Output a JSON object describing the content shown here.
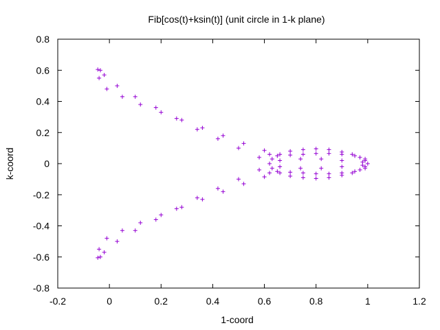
{
  "chart_data": {
    "type": "scatter",
    "title": "Fib[cos(t)+ksin(t)] (unit circle in 1-k plane)",
    "xlabel": "1-coord",
    "ylabel": "k-coord",
    "xlim": [
      -0.2,
      1.2
    ],
    "ylim": [
      -0.8,
      0.8
    ],
    "xticks": [
      "-0.2",
      "0",
      "0.2",
      "0.4",
      "0.6",
      "0.8",
      "1",
      "1.2"
    ],
    "yticks": [
      "-0.8",
      "-0.6",
      "-0.4",
      "-0.2",
      "0",
      "0.2",
      "0.4",
      "0.6",
      "0.8"
    ],
    "grid": false,
    "legend": "none",
    "marker": "+",
    "color": "#9400d3",
    "series": [
      {
        "points": [
          [
            1.0,
            0.0
          ],
          [
            0.99,
            0.02
          ],
          [
            0.97,
            0.04
          ],
          [
            0.94,
            0.06
          ],
          [
            0.9,
            0.075
          ],
          [
            0.85,
            0.09
          ],
          [
            0.8,
            0.095
          ],
          [
            0.75,
            0.09
          ],
          [
            0.7,
            0.08
          ],
          [
            0.66,
            0.06
          ],
          [
            0.63,
            0.03
          ],
          [
            0.62,
            0.0
          ],
          [
            0.63,
            -0.03
          ],
          [
            0.66,
            -0.06
          ],
          [
            0.7,
            -0.08
          ],
          [
            0.75,
            -0.09
          ],
          [
            0.8,
            -0.095
          ],
          [
            0.85,
            -0.09
          ],
          [
            0.9,
            -0.075
          ],
          [
            0.94,
            -0.06
          ],
          [
            0.97,
            -0.04
          ],
          [
            0.99,
            -0.02
          ],
          [
            0.99,
            0.03
          ],
          [
            0.95,
            0.05
          ],
          [
            0.9,
            0.06
          ],
          [
            0.85,
            0.065
          ],
          [
            0.8,
            0.065
          ],
          [
            0.75,
            0.06
          ],
          [
            0.7,
            0.055
          ],
          [
            0.65,
            0.05
          ],
          [
            0.99,
            -0.03
          ],
          [
            0.95,
            -0.05
          ],
          [
            0.9,
            -0.06
          ],
          [
            0.85,
            -0.065
          ],
          [
            0.8,
            -0.065
          ],
          [
            0.75,
            -0.06
          ],
          [
            0.7,
            -0.055
          ],
          [
            0.65,
            -0.05
          ],
          [
            0.98,
            0.01
          ],
          [
            0.9,
            0.02
          ],
          [
            0.82,
            0.03
          ],
          [
            0.74,
            0.03
          ],
          [
            0.66,
            0.02
          ],
          [
            0.98,
            -0.01
          ],
          [
            0.9,
            -0.02
          ],
          [
            0.82,
            -0.03
          ],
          [
            0.74,
            -0.03
          ],
          [
            0.66,
            -0.02
          ],
          [
            0.62,
            0.06
          ],
          [
            0.6,
            0.085
          ],
          [
            0.52,
            0.13
          ],
          [
            0.44,
            0.18
          ],
          [
            0.36,
            0.23
          ],
          [
            0.28,
            0.28
          ],
          [
            0.2,
            0.33
          ],
          [
            0.12,
            0.38
          ],
          [
            0.05,
            0.43
          ],
          [
            -0.01,
            0.48
          ],
          [
            -0.04,
            0.55
          ],
          [
            -0.045,
            0.605
          ],
          [
            0.58,
            0.04
          ],
          [
            0.5,
            0.1
          ],
          [
            0.42,
            0.16
          ],
          [
            0.34,
            0.22
          ],
          [
            0.26,
            0.29
          ],
          [
            0.18,
            0.36
          ],
          [
            0.1,
            0.43
          ],
          [
            0.03,
            0.5
          ],
          [
            -0.02,
            0.57
          ],
          [
            -0.035,
            0.6
          ],
          [
            0.62,
            -0.06
          ],
          [
            0.6,
            -0.085
          ],
          [
            0.52,
            -0.13
          ],
          [
            0.44,
            -0.18
          ],
          [
            0.36,
            -0.23
          ],
          [
            0.28,
            -0.28
          ],
          [
            0.2,
            -0.33
          ],
          [
            0.12,
            -0.38
          ],
          [
            0.05,
            -0.43
          ],
          [
            -0.01,
            -0.48
          ],
          [
            -0.04,
            -0.55
          ],
          [
            -0.045,
            -0.605
          ],
          [
            0.58,
            -0.04
          ],
          [
            0.5,
            -0.1
          ],
          [
            0.42,
            -0.16
          ],
          [
            0.34,
            -0.22
          ],
          [
            0.26,
            -0.29
          ],
          [
            0.18,
            -0.36
          ],
          [
            0.1,
            -0.43
          ],
          [
            0.03,
            -0.5
          ],
          [
            -0.02,
            -0.57
          ],
          [
            -0.035,
            -0.6
          ]
        ]
      }
    ]
  }
}
